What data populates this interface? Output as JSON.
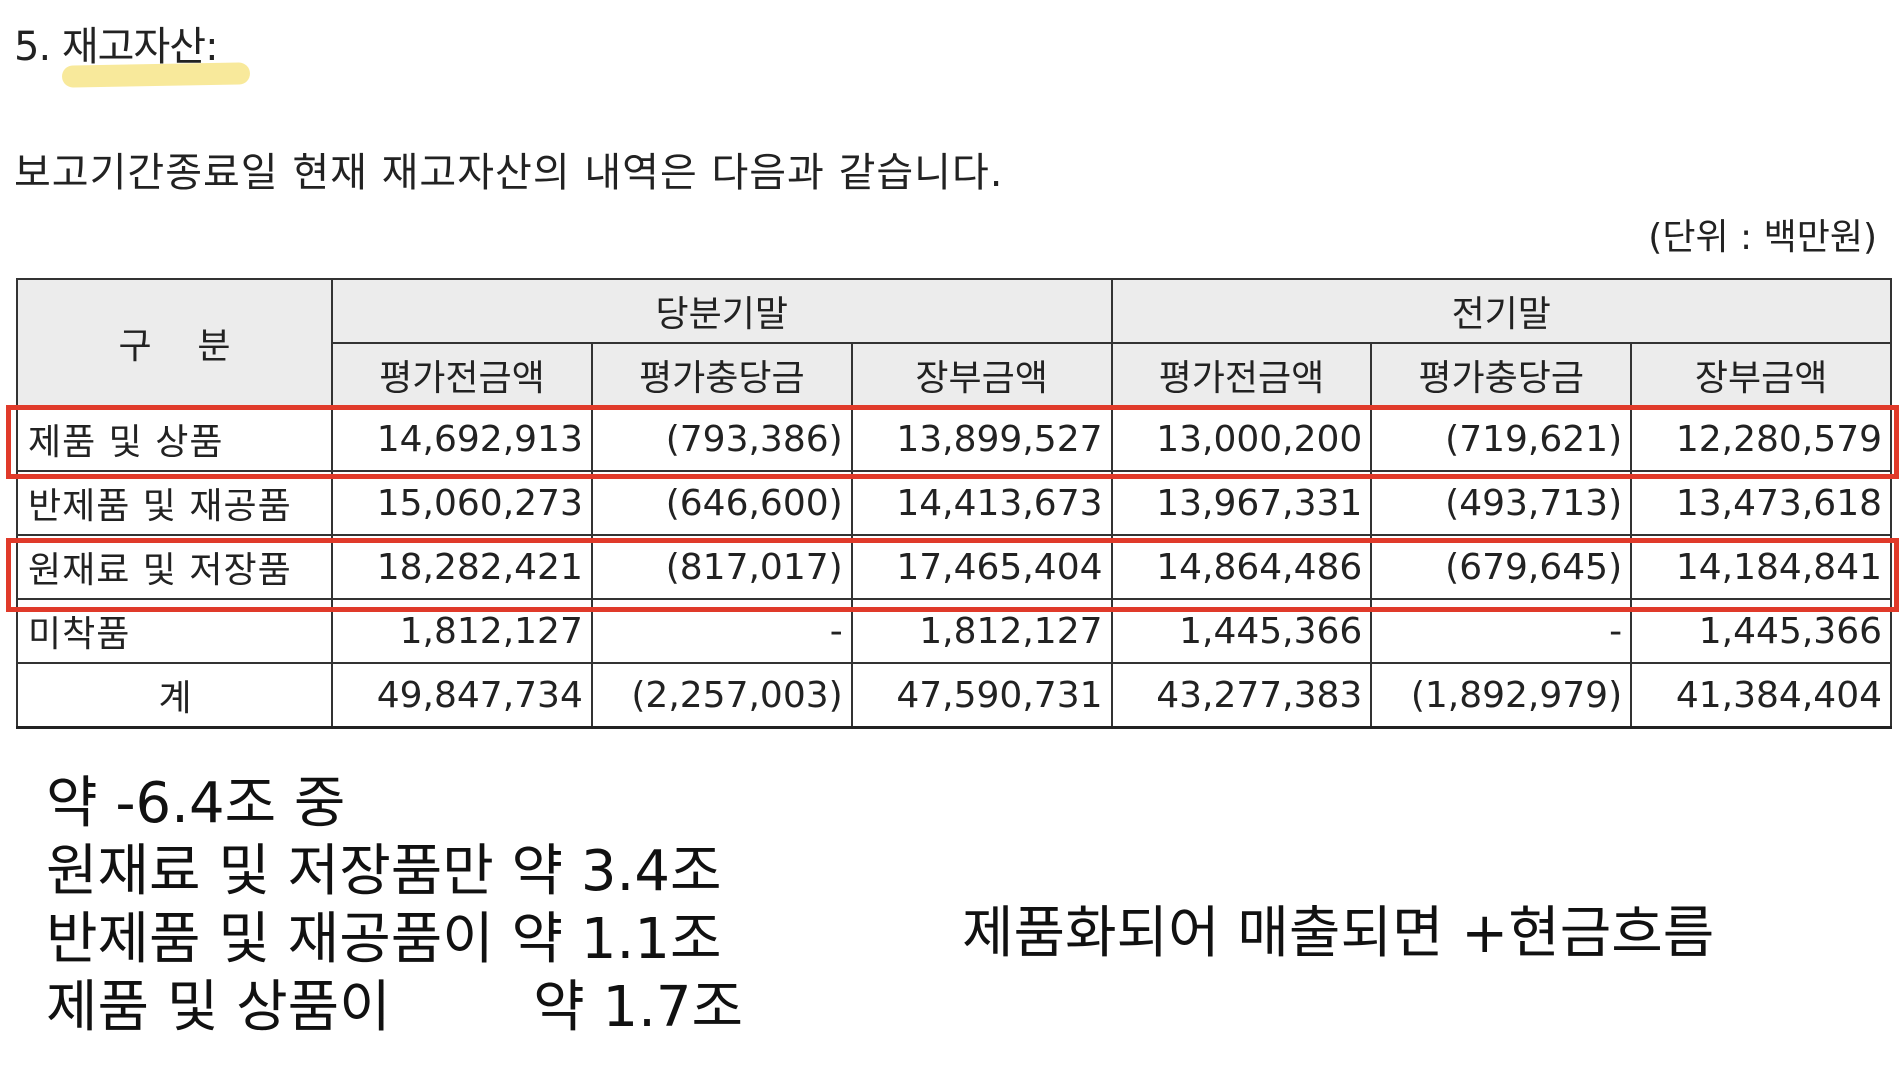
{
  "section_title": "5. 재고자산:",
  "intro": "보고기간종료일 현재 재고자산의 내역은 다음과 같습니다.",
  "unit": "(단위 : 백만원)",
  "table": {
    "header_category": "구    분",
    "groups": [
      "당분기말",
      "전기말"
    ],
    "subheaders": [
      "평가전금액",
      "평가충당금",
      "장부금액",
      "평가전금액",
      "평가충당금",
      "장부금액"
    ],
    "rows": [
      {
        "label": "제품 및 상품",
        "values": [
          "14,692,913",
          "(793,386)",
          "13,899,527",
          "13,000,200",
          "(719,621)",
          "12,280,579"
        ]
      },
      {
        "label": "반제품 및 재공품",
        "values": [
          "15,060,273",
          "(646,600)",
          "14,413,673",
          "13,967,331",
          "(493,713)",
          "13,473,618"
        ]
      },
      {
        "label": "원재료 및 저장품",
        "values": [
          "18,282,421",
          "(817,017)",
          "17,465,404",
          "14,864,486",
          "(679,645)",
          "14,184,841"
        ]
      },
      {
        "label": "미착품",
        "values": [
          "1,812,127",
          "-",
          "1,812,127",
          "1,445,366",
          "-",
          "1,445,366"
        ]
      },
      {
        "label": "계",
        "values": [
          "49,847,734",
          "(2,257,003)",
          "47,590,731",
          "43,277,383",
          "(1,892,979)",
          "41,384,404"
        ]
      }
    ]
  },
  "notes": [
    "약 -6.4조 중",
    "원재료 및 저장품만 약 3.4조",
    "반제품 및 재공품이 약 1.1조",
    "제품 및 상품이        약 1.7조"
  ],
  "side_note": "제품화되어 매출되면 +현금흐름",
  "colors": {
    "highlight": "#f7e58a",
    "redbox": "#e03a2a",
    "header_bg": "#ececec"
  }
}
